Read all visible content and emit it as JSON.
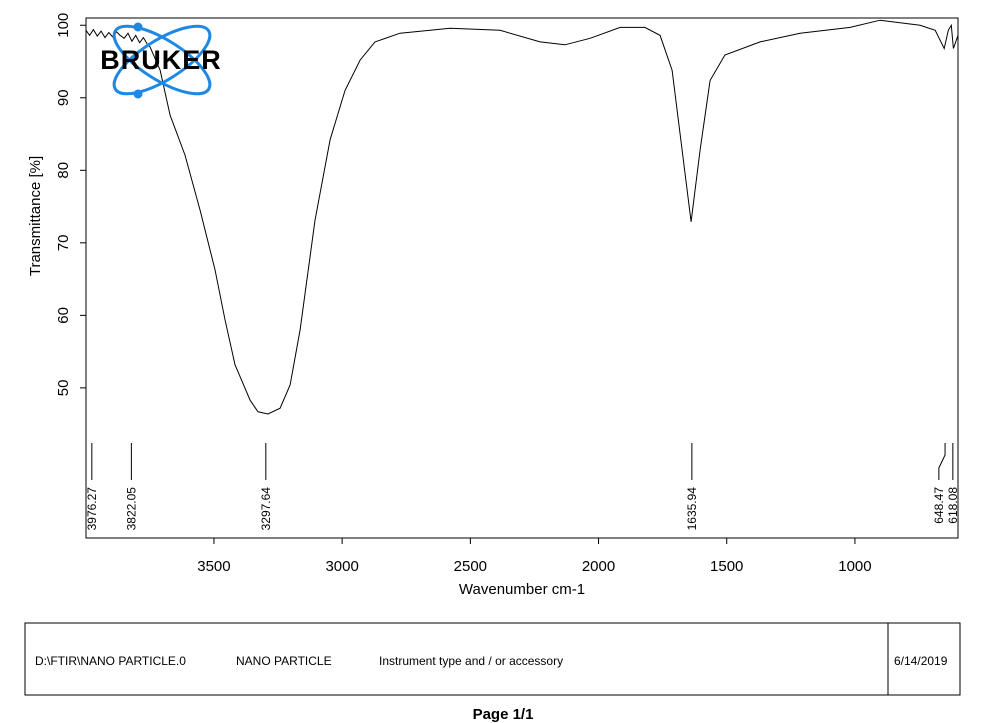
{
  "chart_data": {
    "type": "line",
    "logo": "BRUKER",
    "ylabel": "Transmittance [%]",
    "xlabel": "Wavenumber cm-1",
    "color": "#000000",
    "xlim": [
      3999,
      598
    ],
    "ylim": [
      29.3,
      101
    ],
    "xticks": [
      3500,
      3000,
      2500,
      2000,
      1500,
      1000
    ],
    "yticks": [
      50,
      60,
      70,
      80,
      90,
      100
    ],
    "x": [
      3999,
      3985,
      3970,
      3955,
      3940,
      3925,
      3910,
      3895,
      3880,
      3866,
      3850,
      3835,
      3820,
      3805,
      3790,
      3775,
      3760,
      3749,
      3710,
      3671,
      3613,
      3554,
      3496,
      3457,
      3418,
      3359,
      3328,
      3289,
      3242,
      3203,
      3164,
      3106,
      3047,
      2989,
      2930,
      2872,
      2774,
      2579,
      2384,
      2228,
      2131,
      2033,
      1916,
      1819,
      1760,
      1713,
      1674,
      1639,
      1604,
      1565,
      1507,
      1370,
      1214,
      1019,
      902,
      746,
      687,
      652,
      636,
      624,
      616,
      598
    ],
    "values": [
      99.3,
      98.6,
      99.4,
      98.5,
      99.2,
      98.3,
      99.0,
      98.4,
      99.1,
      98.6,
      98.2,
      98.9,
      97.8,
      98.6,
      97.6,
      98.3,
      97.4,
      97.0,
      93.8,
      87.6,
      82.1,
      74.5,
      66.3,
      59.4,
      53.2,
      48.3,
      46.7,
      46.4,
      47.2,
      50.4,
      58.0,
      73.1,
      84.2,
      91.0,
      95.2,
      97.7,
      98.9,
      99.6,
      99.3,
      97.7,
      97.3,
      98.2,
      99.7,
      99.7,
      98.6,
      93.8,
      82.8,
      72.9,
      82.8,
      92.4,
      95.9,
      97.7,
      98.9,
      99.7,
      100.7,
      100.0,
      99.3,
      96.8,
      99.3,
      100.0,
      96.8,
      98.6
    ],
    "peaks": [
      3976.27,
      3822.05,
      3297.64,
      1635.94,
      648.47,
      618.08
    ]
  },
  "footer": {
    "file": "D:\\FTIR\\NANO PARTICLE.0",
    "sample": "NANO PARTICLE",
    "instrument": "Instrument type and / or accessory",
    "date": "6/14/2019"
  },
  "page": "Page 1/1"
}
